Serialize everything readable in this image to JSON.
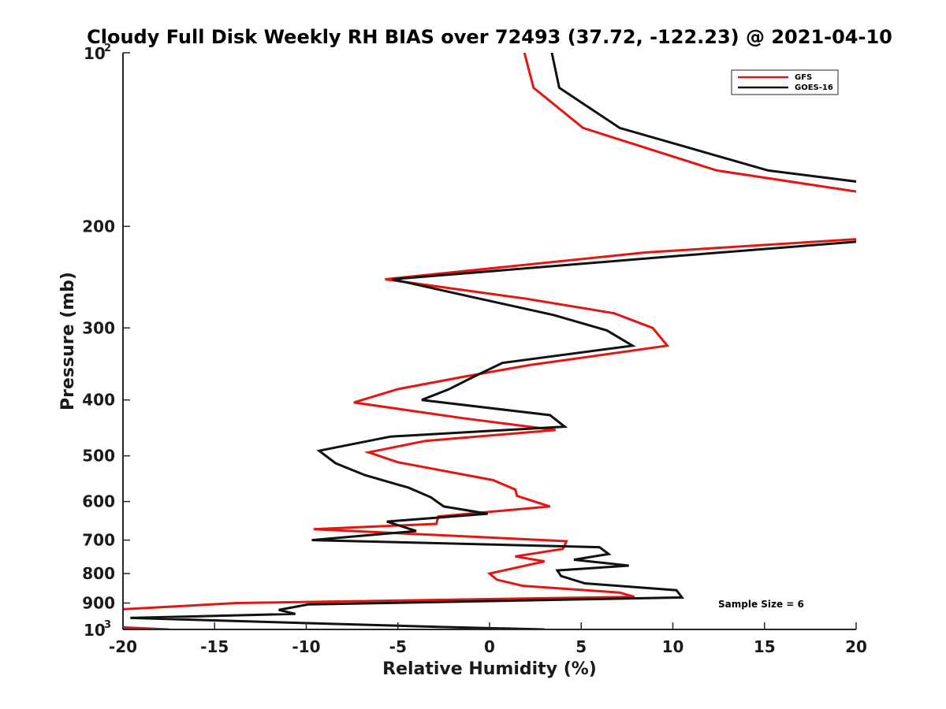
{
  "chart_data": {
    "type": "line",
    "title": "Cloudy Full Disk Weekly RH BIAS over 72493 (37.72, -122.23) @ 2021-04-10",
    "xlabel": "Relative Humidity (%)",
    "ylabel": "Pressure (mb)",
    "xlim": [
      -20,
      20
    ],
    "ylim": [
      100,
      1000
    ],
    "y_scale": "log",
    "y_reversed": true,
    "grid": false,
    "legend_position": "top-right",
    "x_ticks": [
      {
        "value": -20,
        "label": "-20"
      },
      {
        "value": -15,
        "label": "-15"
      },
      {
        "value": -10,
        "label": "-10"
      },
      {
        "value": -5,
        "label": "-5"
      },
      {
        "value": 0,
        "label": "0"
      },
      {
        "value": 5,
        "label": "5"
      },
      {
        "value": 10,
        "label": "10"
      },
      {
        "value": 15,
        "label": "15"
      },
      {
        "value": 20,
        "label": "20"
      }
    ],
    "y_ticks": [
      {
        "value": 100,
        "base": "10",
        "exp": "2"
      },
      {
        "value": 200,
        "label": "200"
      },
      {
        "value": 300,
        "label": "300"
      },
      {
        "value": 400,
        "label": "400"
      },
      {
        "value": 500,
        "label": "500"
      },
      {
        "value": 600,
        "label": "600"
      },
      {
        "value": 700,
        "label": "700"
      },
      {
        "value": 800,
        "label": "800"
      },
      {
        "value": 900,
        "label": "900"
      },
      {
        "value": 1000,
        "base": "10",
        "exp": "3"
      }
    ],
    "series": [
      {
        "name": "GFS",
        "color": "#e8140f",
        "points": [
          [
            1.9,
            100
          ],
          [
            2.4,
            115
          ],
          [
            5.1,
            135
          ],
          [
            12.4,
            160
          ],
          [
            20.5,
            175
          ],
          [
            20.5,
            210
          ],
          [
            8.5,
            222
          ],
          [
            -5.7,
            247
          ],
          [
            2.0,
            267
          ],
          [
            6.8,
            283
          ],
          [
            8.9,
            300
          ],
          [
            9.7,
            322
          ],
          [
            2.2,
            348
          ],
          [
            -1.5,
            365
          ],
          [
            -5.0,
            383
          ],
          [
            -7.4,
            404
          ],
          [
            -1.5,
            430
          ],
          [
            3.6,
            451
          ],
          [
            -3.5,
            471
          ],
          [
            -6.6,
            493
          ],
          [
            -5.0,
            513
          ],
          [
            0.2,
            551
          ],
          [
            1.4,
            572
          ],
          [
            1.5,
            587
          ],
          [
            3.3,
            612
          ],
          [
            -2.8,
            637
          ],
          [
            -2.9,
            656
          ],
          [
            -9.6,
            670
          ],
          [
            4.2,
            703
          ],
          [
            4.0,
            725
          ],
          [
            1.4,
            747
          ],
          [
            3.0,
            762
          ],
          [
            0.0,
            800
          ],
          [
            0.4,
            820
          ],
          [
            1.8,
            840
          ],
          [
            7.1,
            863
          ],
          [
            7.9,
            878
          ],
          [
            -13.8,
            900
          ],
          [
            -20.6,
            925
          ],
          [
            -20.6,
            990
          ],
          [
            -17.5,
            1000
          ]
        ]
      },
      {
        "name": "GOES-16",
        "color": "#111111",
        "points": [
          [
            3.4,
            100
          ],
          [
            3.8,
            115
          ],
          [
            7.1,
            135
          ],
          [
            15.2,
            160
          ],
          [
            20.5,
            168
          ],
          [
            20.5,
            212
          ],
          [
            10.3,
            225
          ],
          [
            -5.3,
            247
          ],
          [
            -1.0,
            265
          ],
          [
            3.5,
            285
          ],
          [
            6.4,
            303
          ],
          [
            7.8,
            322
          ],
          [
            0.7,
            345
          ],
          [
            -0.9,
            365
          ],
          [
            -2.2,
            383
          ],
          [
            -3.7,
            400
          ],
          [
            3.3,
            425
          ],
          [
            4.1,
            445
          ],
          [
            -5.4,
            463
          ],
          [
            -9.3,
            490
          ],
          [
            -8.4,
            515
          ],
          [
            -6.8,
            540
          ],
          [
            -4.4,
            568
          ],
          [
            -3.2,
            590
          ],
          [
            -2.5,
            612
          ],
          [
            -0.1,
            630
          ],
          [
            -5.6,
            650
          ],
          [
            -4.0,
            675
          ],
          [
            -9.7,
            700
          ],
          [
            6.0,
            720
          ],
          [
            6.5,
            740
          ],
          [
            4.6,
            757
          ],
          [
            7.6,
            775
          ],
          [
            3.7,
            790
          ],
          [
            3.9,
            808
          ],
          [
            5.2,
            832
          ],
          [
            10.2,
            855
          ],
          [
            10.5,
            880
          ],
          [
            -9.9,
            905
          ],
          [
            -11.5,
            925
          ],
          [
            -10.6,
            940
          ],
          [
            -19.6,
            955
          ],
          [
            -2.8,
            990
          ],
          [
            3.0,
            1000
          ]
        ]
      }
    ],
    "annotations": [
      {
        "text": "Sample Size = 6"
      }
    ]
  }
}
